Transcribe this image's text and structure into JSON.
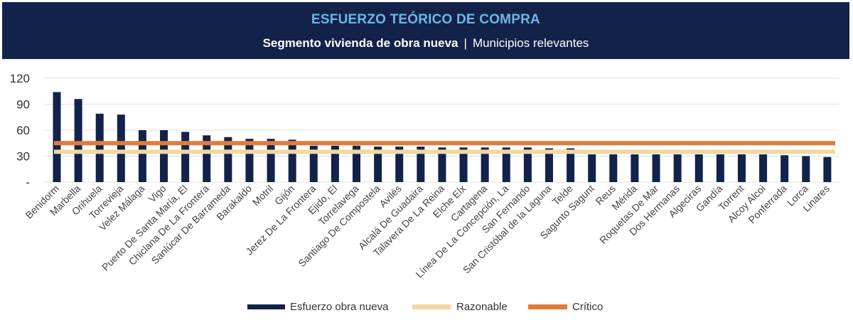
{
  "header": {
    "title": "ESFUERZO TEÓRICO DE COMPRA",
    "subtitle_main": "Segmento vivienda de obra nueva",
    "subtitle_sep": "|",
    "subtitle_rest": "Municipios relevantes"
  },
  "colors": {
    "header_bg": "#13224a",
    "bar": "#13224a",
    "razonable": "#f2d8a0",
    "critico": "#e07b3c"
  },
  "chart_data": {
    "type": "bar",
    "categories": [
      "Benidorm",
      "Marbella",
      "Orihuela",
      "Torrevieja",
      "Velez Málaga",
      "Vigo",
      "Puerto De Santa María, El",
      "Chiclana De La Frontera",
      "Sanlúcar De Barrameda",
      "Barakaldo",
      "Motril",
      "Gijón",
      "Jerez De La Frontera",
      "Ejido, El",
      "Torrelavega",
      "Santiago De Compostela",
      "Avilés",
      "Alcalá De Guadaira",
      "Talavera De La Reina",
      "Elche Elx",
      "Cartagena",
      "Línea De La Concepción, La",
      "San Fernando",
      "San Cristóbal de la Laguna",
      "Telde",
      "Sagunto Sagunt",
      "Reus",
      "Mérida",
      "Roquetas De Mar",
      "Dos Hermanas",
      "Algeciras",
      "Gandía",
      "Torrent",
      "Alcoy Alcoi",
      "Ponferrada",
      "Lorca",
      "Linares"
    ],
    "series": [
      {
        "name": "Esfuerzo obra nueva",
        "type": "bar",
        "values": [
          104,
          96,
          79,
          78,
          60,
          60,
          58,
          54,
          52,
          50,
          50,
          49,
          42,
          42,
          42,
          41,
          41,
          41,
          40,
          40,
          40,
          40,
          40,
          39,
          39,
          32,
          32,
          32,
          32,
          32,
          32,
          32,
          32,
          32,
          31,
          30,
          29
        ]
      },
      {
        "name": "Razonable",
        "type": "line",
        "value": 35
      },
      {
        "name": "Crítico",
        "type": "line",
        "value": 45
      }
    ],
    "y_ticks": [
      "-",
      "30",
      "60",
      "90",
      "120"
    ],
    "ylim": [
      0,
      120
    ],
    "legend": [
      "Esfuerzo obra nueva",
      "Razonable",
      "Crítico"
    ],
    "legend_position": "bottom",
    "grid": true
  }
}
